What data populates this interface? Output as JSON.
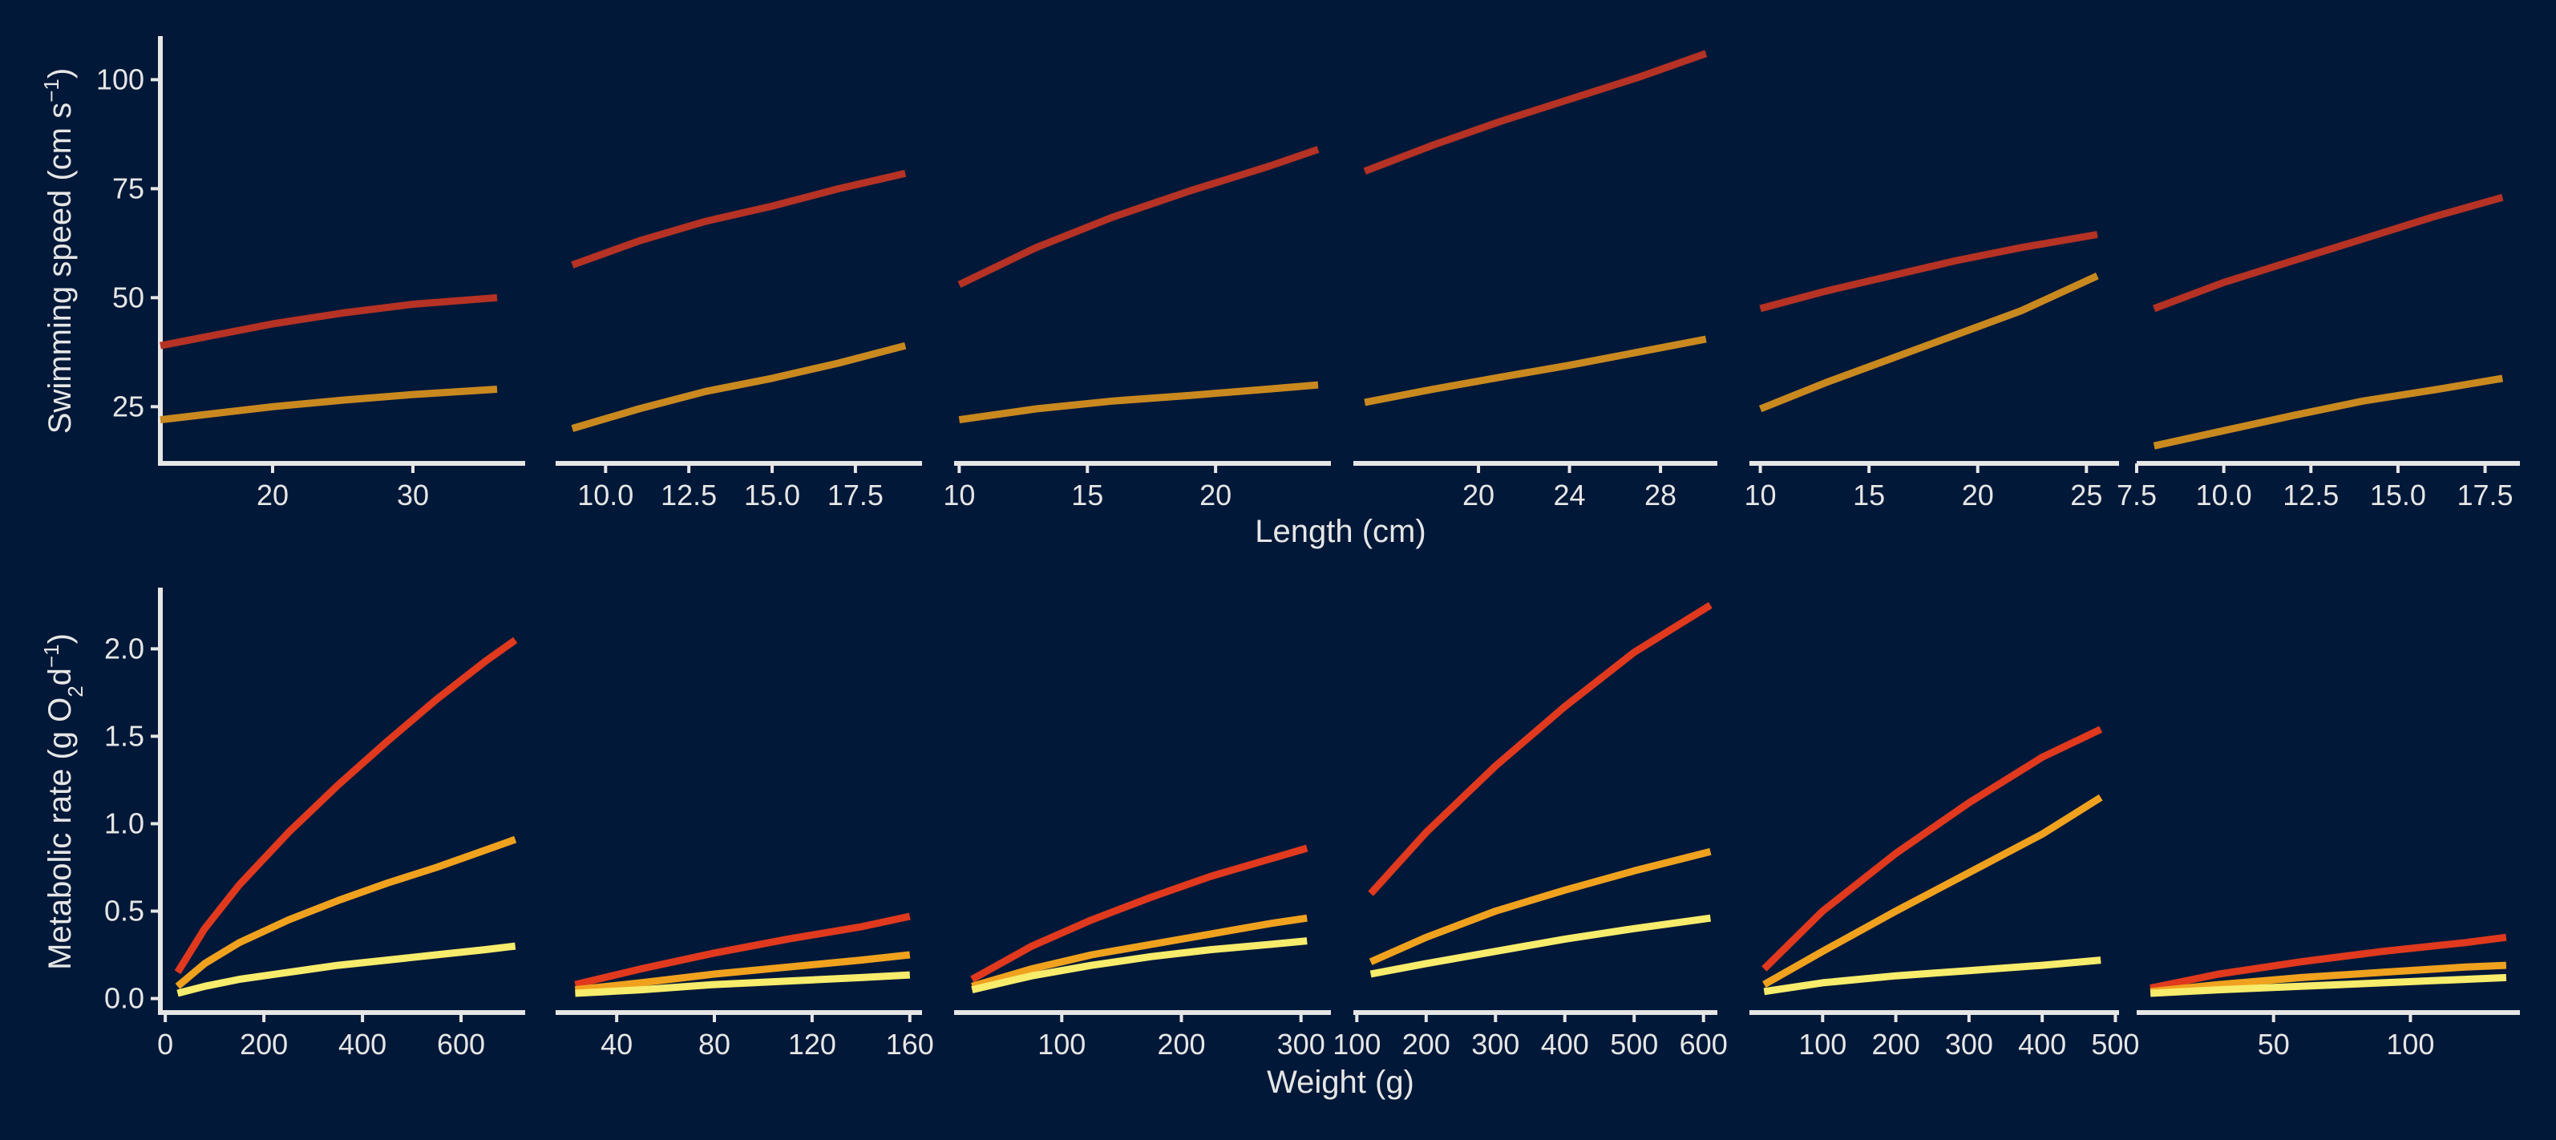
{
  "theme": {
    "background": "#011838",
    "axis_color": "#e6e6e6",
    "text_color": "#e6e6e6"
  },
  "figure": {
    "top_row": {
      "ylabel": "Swimming speed (cm s",
      "ylabel_superscript": "−1",
      "ylabel_close": ")",
      "xlabel": "Length (cm)",
      "y_ticks": [
        "25",
        "50",
        "75",
        "100"
      ]
    },
    "bottom_row": {
      "ylabel": "Metabolic rate (g O",
      "ylabel_subscript": "2",
      "ylabel_mid": "d",
      "ylabel_superscript": "−1",
      "ylabel_close": ")",
      "xlabel": "Weight (g)",
      "y_ticks": [
        "0.0",
        "0.5",
        "1.0",
        "1.5",
        "2.0"
      ]
    }
  },
  "chart_data": [
    {
      "type": "line",
      "row": "top",
      "panel": 1,
      "xlim": [
        12,
        38
      ],
      "ylim": [
        12,
        110
      ],
      "x_ticks": [
        20,
        30
      ],
      "x_tick_labels": [
        "20",
        "30"
      ],
      "series": [
        {
          "color": "#b53224",
          "x": [
            12,
            20,
            25,
            30,
            36
          ],
          "y": [
            39,
            44,
            46.5,
            48.5,
            50
          ]
        },
        {
          "color": "#c9891f",
          "x": [
            12,
            20,
            25,
            30,
            36
          ],
          "y": [
            22,
            25,
            26.5,
            27.8,
            29
          ]
        }
      ]
    },
    {
      "type": "line",
      "row": "top",
      "panel": 2,
      "xlim": [
        8.5,
        19.5
      ],
      "ylim": [
        12,
        110
      ],
      "x_ticks": [
        10,
        12.5,
        15,
        17.5
      ],
      "x_tick_labels": [
        "10.0",
        "12.5",
        "15.0",
        "17.5"
      ],
      "series": [
        {
          "color": "#b53224",
          "x": [
            9,
            11,
            13,
            15,
            17,
            19
          ],
          "y": [
            57.5,
            63,
            67.5,
            71,
            75,
            78.5
          ]
        },
        {
          "color": "#c9891f",
          "x": [
            9,
            11,
            13,
            15,
            17,
            19
          ],
          "y": [
            20,
            24.5,
            28.5,
            31.5,
            35,
            39
          ]
        }
      ]
    },
    {
      "type": "line",
      "row": "top",
      "panel": 3,
      "xlim": [
        9.8,
        24.5
      ],
      "ylim": [
        12,
        110
      ],
      "x_ticks": [
        10,
        15,
        20
      ],
      "x_tick_labels": [
        "10",
        "15",
        "20"
      ],
      "series": [
        {
          "color": "#b53224",
          "x": [
            10,
            13,
            16,
            19,
            22,
            24
          ],
          "y": [
            53,
            61.5,
            68.5,
            74.5,
            80,
            84
          ]
        },
        {
          "color": "#c9891f",
          "x": [
            10,
            13,
            16,
            19,
            22,
            24
          ],
          "y": [
            22,
            24.5,
            26.3,
            27.6,
            29,
            30
          ]
        }
      ]
    },
    {
      "type": "line",
      "row": "top",
      "panel": 4,
      "xlim": [
        14.5,
        30.5
      ],
      "ylim": [
        12,
        110
      ],
      "x_ticks": [
        20,
        24,
        28
      ],
      "x_tick_labels": [
        "20",
        "24",
        "28"
      ],
      "series": [
        {
          "color": "#b53224",
          "x": [
            15,
            18,
            21,
            24,
            27,
            30
          ],
          "y": [
            79,
            85,
            90.5,
            95.5,
            100.5,
            106
          ]
        },
        {
          "color": "#c9891f",
          "x": [
            15,
            18,
            21,
            24,
            27,
            30
          ],
          "y": [
            26,
            29,
            31.8,
            34.5,
            37.5,
            40.5
          ]
        }
      ]
    },
    {
      "type": "line",
      "row": "top",
      "panel": 5,
      "xlim": [
        9.5,
        26.5
      ],
      "ylim": [
        12,
        110
      ],
      "x_ticks": [
        10,
        15,
        20,
        25
      ],
      "x_tick_labels": [
        "10",
        "15",
        "20",
        "25"
      ],
      "series": [
        {
          "color": "#b53224",
          "x": [
            10,
            13,
            16,
            19,
            22,
            25.5
          ],
          "y": [
            47.5,
            51.5,
            55,
            58.5,
            61.5,
            64.5
          ]
        },
        {
          "color": "#c9891f",
          "x": [
            10,
            13,
            16,
            19,
            22,
            25.5
          ],
          "y": [
            24.5,
            30.5,
            36,
            41.5,
            47,
            55
          ]
        }
      ]
    },
    {
      "type": "line",
      "row": "top",
      "panel": 6,
      "xlim": [
        7.5,
        18.5
      ],
      "ylim": [
        12,
        110
      ],
      "x_ticks": [
        7.5,
        10,
        12.5,
        15,
        17.5
      ],
      "x_tick_labels": [
        "7.5",
        "10.0",
        "12.5",
        "15.0",
        "17.5"
      ],
      "series": [
        {
          "color": "#b53224",
          "x": [
            8,
            10,
            12,
            14,
            16,
            18
          ],
          "y": [
            47.5,
            53.5,
            58.5,
            63.5,
            68.5,
            73
          ]
        },
        {
          "color": "#c9891f",
          "x": [
            8,
            10,
            12,
            14,
            16,
            18
          ],
          "y": [
            16,
            19.5,
            23,
            26.3,
            28.8,
            31.5
          ]
        }
      ]
    },
    {
      "type": "line",
      "row": "bottom",
      "panel": 1,
      "xlim": [
        -10,
        730
      ],
      "ylim": [
        -0.08,
        2.35
      ],
      "x_ticks": [
        0,
        200,
        400,
        600
      ],
      "x_tick_labels": [
        "0",
        "200",
        "400",
        "600"
      ],
      "series": [
        {
          "color": "#e0391e",
          "x": [
            25,
            80,
            150,
            250,
            350,
            450,
            550,
            650,
            710
          ],
          "y": [
            0.15,
            0.4,
            0.65,
            0.95,
            1.22,
            1.47,
            1.71,
            1.93,
            2.05
          ]
        },
        {
          "color": "#f0a21e",
          "x": [
            25,
            80,
            150,
            250,
            350,
            450,
            550,
            650,
            710
          ],
          "y": [
            0.07,
            0.2,
            0.32,
            0.45,
            0.56,
            0.66,
            0.75,
            0.85,
            0.91
          ]
        },
        {
          "color": "#f7ec6b",
          "x": [
            25,
            80,
            150,
            250,
            350,
            450,
            550,
            650,
            710
          ],
          "y": [
            0.03,
            0.07,
            0.11,
            0.15,
            0.19,
            0.22,
            0.25,
            0.28,
            0.3
          ]
        }
      ]
    },
    {
      "type": "line",
      "row": "bottom",
      "panel": 2,
      "xlim": [
        15,
        165
      ],
      "ylim": [
        -0.08,
        2.35
      ],
      "x_ticks": [
        40,
        80,
        120,
        160
      ],
      "x_tick_labels": [
        "40",
        "80",
        "120",
        "160"
      ],
      "series": [
        {
          "color": "#e0391e",
          "x": [
            23,
            50,
            80,
            110,
            140,
            160
          ],
          "y": [
            0.08,
            0.17,
            0.26,
            0.34,
            0.41,
            0.47
          ]
        },
        {
          "color": "#f0a21e",
          "x": [
            23,
            50,
            80,
            110,
            140,
            160
          ],
          "y": [
            0.05,
            0.09,
            0.14,
            0.18,
            0.22,
            0.25
          ]
        },
        {
          "color": "#f7ec6b",
          "x": [
            23,
            50,
            80,
            110,
            140,
            160
          ],
          "y": [
            0.03,
            0.05,
            0.08,
            0.1,
            0.12,
            0.135
          ]
        }
      ]
    },
    {
      "type": "line",
      "row": "bottom",
      "panel": 3,
      "xlim": [
        10,
        325
      ],
      "ylim": [
        -0.08,
        2.35
      ],
      "x_ticks": [
        100,
        200,
        300
      ],
      "x_tick_labels": [
        "100",
        "200",
        "300"
      ],
      "series": [
        {
          "color": "#e0391e",
          "x": [
            25,
            75,
            125,
            175,
            225,
            275,
            305
          ],
          "y": [
            0.11,
            0.3,
            0.45,
            0.58,
            0.7,
            0.8,
            0.86
          ]
        },
        {
          "color": "#f0a21e",
          "x": [
            25,
            75,
            125,
            175,
            225,
            275,
            305
          ],
          "y": [
            0.07,
            0.17,
            0.25,
            0.31,
            0.37,
            0.43,
            0.46
          ]
        },
        {
          "color": "#f7ec6b",
          "x": [
            25,
            75,
            125,
            175,
            225,
            275,
            305
          ],
          "y": [
            0.05,
            0.13,
            0.19,
            0.24,
            0.28,
            0.31,
            0.33
          ]
        }
      ]
    },
    {
      "type": "line",
      "row": "bottom",
      "panel": 4,
      "xlim": [
        95,
        620
      ],
      "ylim": [
        -0.08,
        2.35
      ],
      "x_ticks": [
        100,
        200,
        300,
        400,
        500,
        600
      ],
      "x_tick_labels": [
        "100",
        "200",
        "300",
        "400",
        "500",
        "600"
      ],
      "series": [
        {
          "color": "#e0391e",
          "x": [
            120,
            200,
            300,
            400,
            500,
            610
          ],
          "y": [
            0.6,
            0.95,
            1.33,
            1.67,
            1.98,
            2.25
          ]
        },
        {
          "color": "#f0a21e",
          "x": [
            120,
            200,
            300,
            400,
            500,
            610
          ],
          "y": [
            0.21,
            0.35,
            0.5,
            0.62,
            0.73,
            0.84
          ]
        },
        {
          "color": "#f7ec6b",
          "x": [
            120,
            200,
            300,
            400,
            500,
            610
          ],
          "y": [
            0.14,
            0.2,
            0.27,
            0.34,
            0.4,
            0.46
          ]
        }
      ]
    },
    {
      "type": "line",
      "row": "bottom",
      "panel": 5,
      "xlim": [
        0,
        505
      ],
      "ylim": [
        -0.08,
        2.35
      ],
      "x_ticks": [
        100,
        200,
        300,
        400,
        500
      ],
      "x_tick_labels": [
        "100",
        "200",
        "300",
        "400",
        "500"
      ],
      "series": [
        {
          "color": "#e0391e",
          "x": [
            20,
            100,
            200,
            300,
            400,
            480
          ],
          "y": [
            0.17,
            0.5,
            0.83,
            1.12,
            1.38,
            1.54
          ]
        },
        {
          "color": "#f0a21e",
          "x": [
            20,
            100,
            200,
            300,
            400,
            480
          ],
          "y": [
            0.08,
            0.27,
            0.5,
            0.72,
            0.94,
            1.15
          ]
        },
        {
          "color": "#f7ec6b",
          "x": [
            20,
            100,
            200,
            300,
            400,
            480
          ],
          "y": [
            0.04,
            0.09,
            0.13,
            0.16,
            0.19,
            0.22
          ]
        }
      ]
    },
    {
      "type": "line",
      "row": "bottom",
      "panel": 6,
      "xlim": [
        0,
        140
      ],
      "ylim": [
        -0.08,
        2.35
      ],
      "x_ticks": [
        50,
        100
      ],
      "x_tick_labels": [
        "50",
        "100"
      ],
      "series": [
        {
          "color": "#e0391e",
          "x": [
            5,
            30,
            60,
            90,
            120,
            135
          ],
          "y": [
            0.06,
            0.14,
            0.21,
            0.27,
            0.32,
            0.35
          ]
        },
        {
          "color": "#f0a21e",
          "x": [
            5,
            30,
            60,
            90,
            120,
            135
          ],
          "y": [
            0.04,
            0.08,
            0.12,
            0.15,
            0.18,
            0.19
          ]
        },
        {
          "color": "#f7ec6b",
          "x": [
            5,
            30,
            60,
            90,
            120,
            135
          ],
          "y": [
            0.03,
            0.05,
            0.07,
            0.09,
            0.11,
            0.12
          ]
        }
      ]
    }
  ]
}
